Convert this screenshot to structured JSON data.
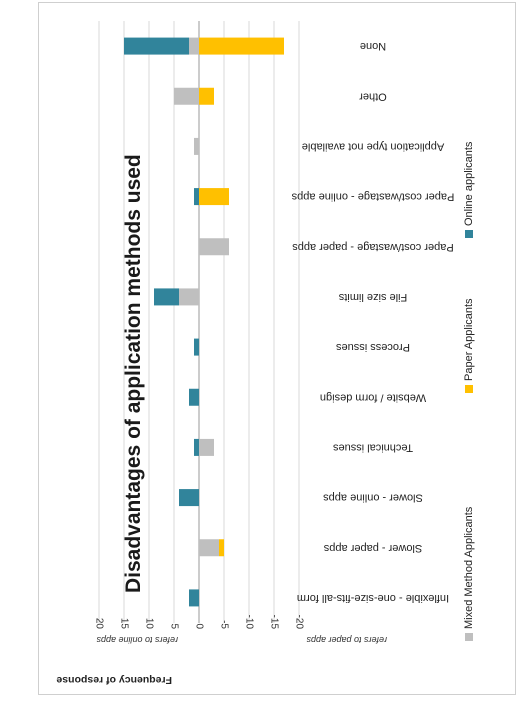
{
  "chart_data": {
    "type": "bar",
    "orientation": "horizontal, stacked (figure rotated 180°)",
    "title": "Disadvantages of application methods used",
    "xlabel": "Frequency of response",
    "annotations": {
      "online_side": "refers to online apps",
      "paper_side": "refers to paper apps"
    },
    "xlim": [
      -20,
      20
    ],
    "xticks": [
      "20",
      "15",
      "10",
      "5",
      "0",
      "-5",
      "-10",
      "-15",
      "-20"
    ],
    "grid": true,
    "legend_position": "right",
    "categories": [
      "Inflexible - one-size-fits-all form",
      "Slower - paper apps",
      "Slower - online apps",
      "Technical issues",
      "Website / form design",
      "Process issues",
      "File size limits",
      "Paper cost/wastage - paper apps",
      "Paper cost/wastage - online apps",
      "Application type not available",
      "Other",
      "None"
    ],
    "series": [
      {
        "name": "Mixed Method Applicants",
        "color": "#bfbfbf",
        "values": [
          0,
          -4,
          0,
          -3,
          0,
          0,
          4,
          -6,
          0,
          1,
          5,
          2
        ]
      },
      {
        "name": "Paper Applicants",
        "color": "#ffc000",
        "values": [
          0,
          -1,
          0,
          0,
          0,
          0,
          0,
          0,
          -6,
          0,
          -3,
          -17
        ]
      },
      {
        "name": "Online applicants",
        "color": "#31849b",
        "values": [
          2,
          0,
          4,
          1,
          2,
          1,
          5,
          0,
          1,
          0,
          0,
          13
        ]
      }
    ]
  }
}
